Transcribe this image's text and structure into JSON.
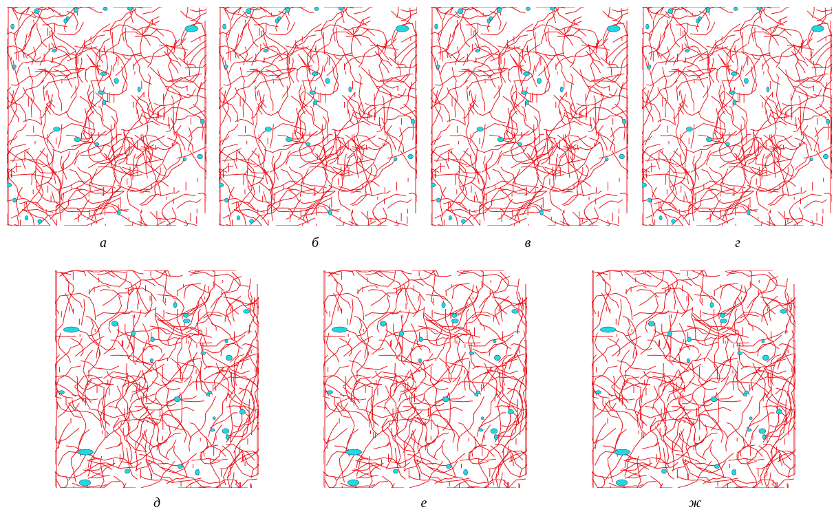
{
  "panels": [
    {
      "label": "а"
    },
    {
      "label": "б"
    },
    {
      "label": "в"
    },
    {
      "label": "г"
    },
    {
      "label": "д"
    },
    {
      "label": "е"
    },
    {
      "label": "ж"
    }
  ]
}
